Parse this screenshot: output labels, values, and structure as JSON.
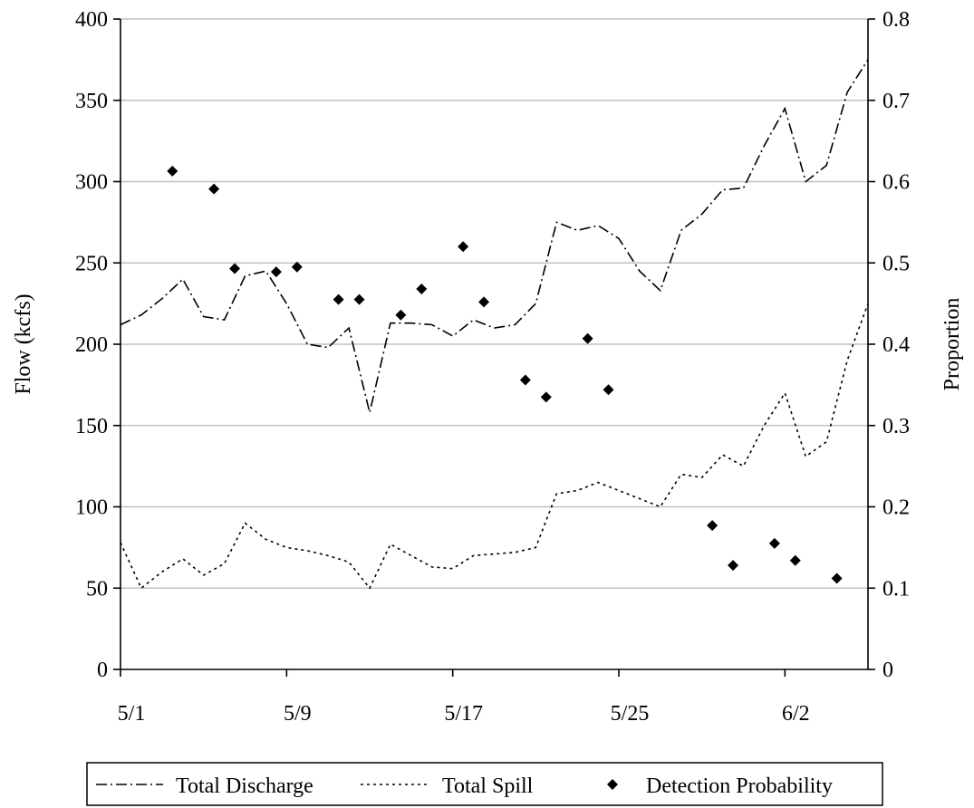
{
  "chart_data": {
    "type": "line",
    "ylabel": "Flow (kcfs)",
    "y2label": "Proportion",
    "ylim": [
      0,
      400
    ],
    "y2lim": [
      0,
      0.8
    ],
    "yticks": [
      0,
      50,
      100,
      150,
      200,
      250,
      300,
      350,
      400
    ],
    "y2ticks": [
      "0",
      "0.1",
      "0.2",
      "0.3",
      "0.4",
      "0.5",
      "0.6",
      "0.7",
      "0.8"
    ],
    "xlim": [
      0,
      36
    ],
    "xticks": [
      {
        "x": 0,
        "label": "5/1"
      },
      {
        "x": 8,
        "label": "5/9"
      },
      {
        "x": 16,
        "label": "5/17"
      },
      {
        "x": 24,
        "label": "5/25"
      },
      {
        "x": 32,
        "label": "6/2"
      }
    ],
    "grid": true,
    "legend_position": "bottom",
    "series": [
      {
        "name": "Total Discharge",
        "axis": "left",
        "style": "dash-dot",
        "color": "#000000",
        "x": [
          0,
          1,
          2,
          3,
          4,
          5,
          6,
          7,
          8,
          9,
          10,
          11,
          12,
          13,
          14,
          15,
          16,
          17,
          18,
          19,
          20,
          21,
          22,
          23,
          24,
          25,
          26,
          27,
          28,
          29,
          30,
          31,
          32,
          33,
          34,
          35,
          36
        ],
        "y": [
          212,
          218,
          228,
          240,
          217,
          215,
          242,
          245,
          225,
          200,
          198,
          210,
          158,
          213,
          213,
          212,
          205,
          215,
          210,
          212,
          225,
          275,
          270,
          273,
          265,
          245,
          233,
          270,
          280,
          295,
          296,
          322,
          345,
          300,
          310,
          355,
          375
        ]
      },
      {
        "name": "Total Spill",
        "axis": "left",
        "style": "dotted",
        "color": "#000000",
        "x": [
          0,
          1,
          2,
          3,
          4,
          5,
          6,
          7,
          8,
          9,
          10,
          11,
          12,
          13,
          14,
          15,
          16,
          17,
          18,
          19,
          20,
          21,
          22,
          23,
          24,
          25,
          26,
          27,
          28,
          29,
          30,
          31,
          32,
          33,
          34,
          35,
          36
        ],
        "y": [
          78,
          50,
          60,
          68,
          58,
          65,
          90,
          80,
          75,
          73,
          70,
          66,
          50,
          77,
          70,
          63,
          62,
          70,
          71,
          72,
          75,
          108,
          110,
          115,
          110,
          105,
          100,
          120,
          118,
          132,
          125,
          150,
          170,
          131,
          140,
          190,
          225
        ]
      },
      {
        "name": "Detection Probability",
        "axis": "right",
        "style": "marker",
        "color": "#000000",
        "x": [
          2.5,
          4.5,
          5.5,
          7.5,
          8.5,
          10.5,
          11.5,
          13.5,
          14.5,
          16.5,
          17.5,
          19.5,
          20.5,
          22.5,
          23.5,
          28.5,
          29.5,
          31.5,
          32.5,
          34.5
        ],
        "y": [
          0.613,
          0.591,
          0.493,
          0.489,
          0.495,
          0.455,
          0.455,
          0.436,
          0.468,
          0.52,
          0.452,
          0.356,
          0.335,
          0.407,
          0.344,
          0.177,
          0.128,
          0.155,
          0.134,
          0.112
        ]
      }
    ]
  }
}
